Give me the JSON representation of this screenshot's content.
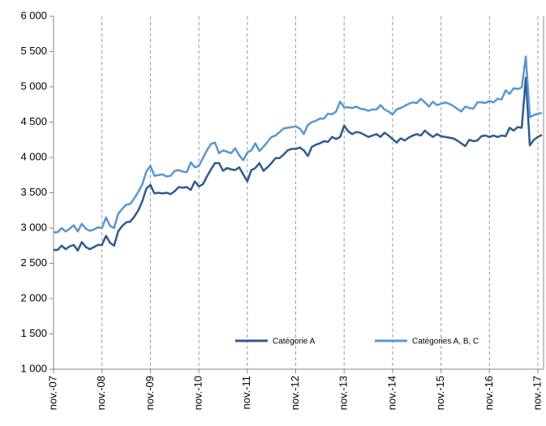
{
  "chart_data": {
    "type": "line",
    "categories": [
      "nov.-07",
      null,
      null,
      null,
      null,
      null,
      null,
      null,
      null,
      null,
      null,
      null,
      "nov.-08",
      null,
      null,
      null,
      null,
      null,
      null,
      null,
      null,
      null,
      null,
      null,
      "nov.-09",
      null,
      null,
      null,
      null,
      null,
      null,
      null,
      null,
      null,
      null,
      null,
      "nov.-10",
      null,
      null,
      null,
      null,
      null,
      null,
      null,
      null,
      null,
      null,
      null,
      "nov.-11",
      null,
      null,
      null,
      null,
      null,
      null,
      null,
      null,
      null,
      null,
      null,
      "nov.-12",
      null,
      null,
      null,
      null,
      null,
      null,
      null,
      null,
      null,
      null,
      null,
      "nov.-13",
      null,
      null,
      null,
      null,
      null,
      null,
      null,
      null,
      null,
      null,
      null,
      "nov.-14",
      null,
      null,
      null,
      null,
      null,
      null,
      null,
      null,
      null,
      null,
      null,
      "nov.-15",
      null,
      null,
      null,
      null,
      null,
      null,
      null,
      null,
      null,
      null,
      null,
      "nov.-16",
      null,
      null,
      null,
      null,
      null,
      null,
      null,
      null,
      null,
      null,
      null,
      "nov.-17",
      null
    ],
    "series": [
      {
        "name": "Catégorie A",
        "color": "#2f5b8c",
        "values": [
          2690,
          2690,
          2750,
          2700,
          2740,
          2760,
          2680,
          2800,
          2730,
          2700,
          2730,
          2760,
          2760,
          2890,
          2790,
          2750,
          2950,
          3030,
          3080,
          3090,
          3160,
          3250,
          3380,
          3560,
          3610,
          3490,
          3500,
          3490,
          3500,
          3480,
          3520,
          3580,
          3570,
          3580,
          3540,
          3660,
          3590,
          3620,
          3730,
          3830,
          3920,
          3920,
          3810,
          3850,
          3830,
          3820,
          3860,
          3760,
          3660,
          3820,
          3850,
          3920,
          3810,
          3860,
          3920,
          3990,
          3990,
          4040,
          4100,
          4120,
          4120,
          4140,
          4100,
          4020,
          4150,
          4180,
          4200,
          4230,
          4220,
          4290,
          4260,
          4290,
          4450,
          4370,
          4330,
          4360,
          4350,
          4320,
          4290,
          4310,
          4330,
          4290,
          4350,
          4310,
          4260,
          4210,
          4270,
          4240,
          4280,
          4310,
          4330,
          4310,
          4380,
          4330,
          4290,
          4330,
          4300,
          4290,
          4280,
          4270,
          4240,
          4200,
          4160,
          4250,
          4230,
          4240,
          4300,
          4310,
          4290,
          4310,
          4290,
          4310,
          4300,
          4420,
          4380,
          4430,
          4420,
          5130,
          4170,
          4250,
          4290,
          4320
        ]
      },
      {
        "name": "Catégories A, B, C",
        "color": "#5a96d2",
        "values": [
          2940,
          2940,
          3000,
          2950,
          2990,
          3040,
          2950,
          3060,
          2990,
          2960,
          2980,
          3010,
          3000,
          3150,
          3030,
          3000,
          3200,
          3270,
          3330,
          3340,
          3420,
          3510,
          3620,
          3800,
          3880,
          3740,
          3750,
          3760,
          3730,
          3740,
          3810,
          3820,
          3800,
          3790,
          3930,
          3860,
          3880,
          3990,
          4100,
          4190,
          4210,
          4060,
          4100,
          4080,
          4060,
          4130,
          4030,
          3960,
          4070,
          4100,
          4200,
          4090,
          4150,
          4220,
          4290,
          4310,
          4360,
          4410,
          4420,
          4430,
          4440,
          4410,
          4330,
          4460,
          4500,
          4520,
          4550,
          4550,
          4620,
          4610,
          4650,
          4790,
          4710,
          4710,
          4700,
          4720,
          4690,
          4680,
          4660,
          4680,
          4680,
          4740,
          4680,
          4650,
          4610,
          4680,
          4700,
          4730,
          4760,
          4780,
          4770,
          4830,
          4780,
          4720,
          4790,
          4740,
          4760,
          4780,
          4760,
          4730,
          4690,
          4650,
          4720,
          4700,
          4690,
          4780,
          4780,
          4770,
          4800,
          4780,
          4830,
          4820,
          4950,
          4900,
          4980,
          4970,
          4990,
          5430,
          4570,
          4600,
          4620,
          4630
        ]
      }
    ],
    "ylim": [
      1000,
      6000
    ],
    "yticks": [
      {
        "value": 1000,
        "label": "1 000"
      },
      {
        "value": 1500,
        "label": "1 500"
      },
      {
        "value": 2000,
        "label": "2 000"
      },
      {
        "value": 2500,
        "label": "2 500"
      },
      {
        "value": 3000,
        "label": "3 000"
      },
      {
        "value": 3500,
        "label": "3 500"
      },
      {
        "value": 4000,
        "label": "4 000"
      },
      {
        "value": 4500,
        "label": "4 500"
      },
      {
        "value": 5000,
        "label": "5 000"
      },
      {
        "value": 5500,
        "label": "5 500"
      },
      {
        "value": 6000,
        "label": "6 000"
      }
    ],
    "grid": "x"
  }
}
